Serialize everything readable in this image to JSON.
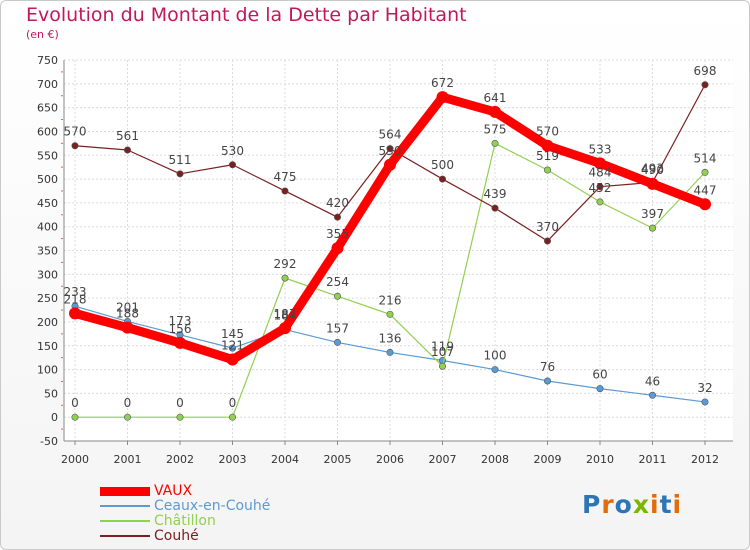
{
  "chart_data": {
    "type": "line",
    "title": "Evolution du Montant de la Dette par Habitant",
    "subtitle": "(en €)",
    "categories": [
      "2000",
      "2001",
      "2002",
      "2003",
      "2004",
      "2005",
      "2006",
      "2007",
      "2008",
      "2009",
      "2010",
      "2011",
      "2012"
    ],
    "ylim": [
      -50,
      750
    ],
    "yticks": [
      -50,
      0,
      50,
      100,
      150,
      200,
      250,
      300,
      350,
      400,
      450,
      500,
      550,
      600,
      650,
      700,
      750
    ],
    "grid": true,
    "legend_position": "bottom-left",
    "series": [
      {
        "name": "VAUX",
        "color": "#ff0000",
        "values": [
          218,
          188,
          156,
          121,
          187,
          355,
          530,
          672,
          641,
          570,
          533,
          490,
          447
        ],
        "labels": [
          "218",
          "188",
          "156",
          "121",
          "187",
          "355",
          "530",
          "672",
          "641",
          "570",
          "533",
          "490",
          "447"
        ]
      },
      {
        "name": "Ceaux-en-Couhé",
        "color": "#5b9bd5",
        "values": [
          233,
          201,
          173,
          145,
          184,
          157,
          136,
          119,
          100,
          76,
          60,
          46,
          32
        ],
        "labels": [
          "233",
          "201",
          "173",
          "145",
          "184",
          "157",
          "136",
          "119",
          "100",
          "76",
          "60",
          "46",
          "32"
        ]
      },
      {
        "name": "Châtillon",
        "color": "#92d050",
        "values": [
          0,
          0,
          0,
          0,
          292,
          254,
          216,
          107,
          575,
          519,
          452,
          397,
          514
        ],
        "labels": [
          "0",
          "0",
          "0",
          "0",
          "292",
          "254",
          "216",
          "107",
          "575",
          "519",
          "452",
          "397",
          "514"
        ]
      },
      {
        "name": "Couhé",
        "color": "#7b2020",
        "values": [
          570,
          561,
          511,
          530,
          475,
          420,
          564,
          500,
          439,
          370,
          484,
          493,
          698
        ],
        "labels": [
          "570",
          "561",
          "511",
          "530",
          "475",
          "420",
          "564",
          "500",
          "439",
          "370",
          "484",
          "493",
          "698"
        ]
      }
    ]
  },
  "legend": {
    "items": [
      {
        "label": "VAUX",
        "color": "#ff0000"
      },
      {
        "label": "Ceaux-en-Couhé",
        "color": "#5b9bd5"
      },
      {
        "label": "Châtillon",
        "color": "#92d050"
      },
      {
        "label": "Couhé",
        "color": "#7b2020"
      }
    ]
  },
  "logo": {
    "text": "Proxiti",
    "colors": [
      "#2e75b6",
      "#e36c09",
      "#2e75b6",
      "#7ab800",
      "#e36c09",
      "#2e75b6",
      "#e36c09"
    ]
  }
}
